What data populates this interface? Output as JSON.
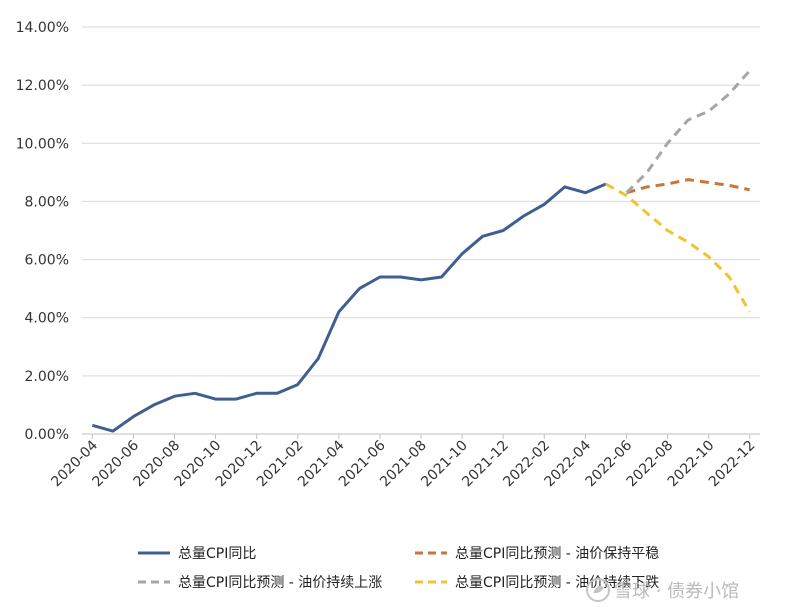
{
  "chart_data": {
    "type": "line",
    "x": [
      "2020-04",
      "2020-05",
      "2020-06",
      "2020-07",
      "2020-08",
      "2020-09",
      "2020-10",
      "2020-11",
      "2020-12",
      "2021-01",
      "2021-02",
      "2021-03",
      "2021-04",
      "2021-05",
      "2021-06",
      "2021-07",
      "2021-08",
      "2021-09",
      "2021-10",
      "2021-11",
      "2021-12",
      "2022-01",
      "2022-02",
      "2022-03",
      "2022-04",
      "2022-05",
      "2022-06",
      "2022-07",
      "2022-08",
      "2022-09",
      "2022-10",
      "2022-11",
      "2022-12"
    ],
    "x_tick_labels": [
      "2020-04",
      "2020-06",
      "2020-08",
      "2020-10",
      "2020-12",
      "2021-02",
      "2021-04",
      "2021-06",
      "2021-08",
      "2021-10",
      "2021-12",
      "2022-02",
      "2022-04",
      "2022-06",
      "2022-08",
      "2022-10",
      "2022-12"
    ],
    "y_tick_labels": [
      "0.00%",
      "2.00%",
      "4.00%",
      "6.00%",
      "8.00%",
      "10.00%",
      "12.00%",
      "14.00%"
    ],
    "ylim": [
      0,
      14
    ],
    "grid": "horizontal",
    "legend_position": "bottom",
    "series": [
      {
        "name": "总量CPI同比",
        "color": "#3f5f91",
        "style": "solid",
        "values": [
          0.3,
          0.1,
          0.6,
          1.0,
          1.3,
          1.4,
          1.2,
          1.2,
          1.4,
          1.4,
          1.7,
          2.6,
          4.2,
          5.0,
          5.4,
          5.4,
          5.3,
          5.4,
          6.2,
          6.8,
          7.0,
          7.5,
          7.9,
          8.5,
          8.3,
          8.6,
          null,
          null,
          null,
          null,
          null,
          null,
          null
        ]
      },
      {
        "name": "总量CPI同比预测 - 油价保持平稳",
        "color": "#c8763c",
        "style": "dashed",
        "values": [
          null,
          null,
          null,
          null,
          null,
          null,
          null,
          null,
          null,
          null,
          null,
          null,
          null,
          null,
          null,
          null,
          null,
          null,
          null,
          null,
          null,
          null,
          null,
          null,
          null,
          null,
          8.3,
          8.5,
          8.6,
          8.75,
          8.65,
          8.55,
          8.4
        ]
      },
      {
        "name": "总量CPI同比预测 - 油价持续上涨",
        "color": "#a6a6a6",
        "style": "dashed",
        "values": [
          null,
          null,
          null,
          null,
          null,
          null,
          null,
          null,
          null,
          null,
          null,
          null,
          null,
          null,
          null,
          null,
          null,
          null,
          null,
          null,
          null,
          null,
          null,
          null,
          null,
          null,
          8.3,
          9.0,
          10.0,
          10.8,
          11.1,
          11.7,
          12.5
        ]
      },
      {
        "name": "总量CPI同比预测 - 油价持续下跌",
        "color": "#f2c230",
        "style": "dashed",
        "values": [
          null,
          null,
          null,
          null,
          null,
          null,
          null,
          null,
          null,
          null,
          null,
          null,
          null,
          null,
          null,
          null,
          null,
          null,
          null,
          null,
          null,
          null,
          null,
          null,
          null,
          8.6,
          8.2,
          7.6,
          7.0,
          6.6,
          6.1,
          5.4,
          4.2
        ]
      }
    ]
  },
  "watermark": {
    "text": "雪球 · 债券小馆",
    "icon": "snowball-logo"
  }
}
